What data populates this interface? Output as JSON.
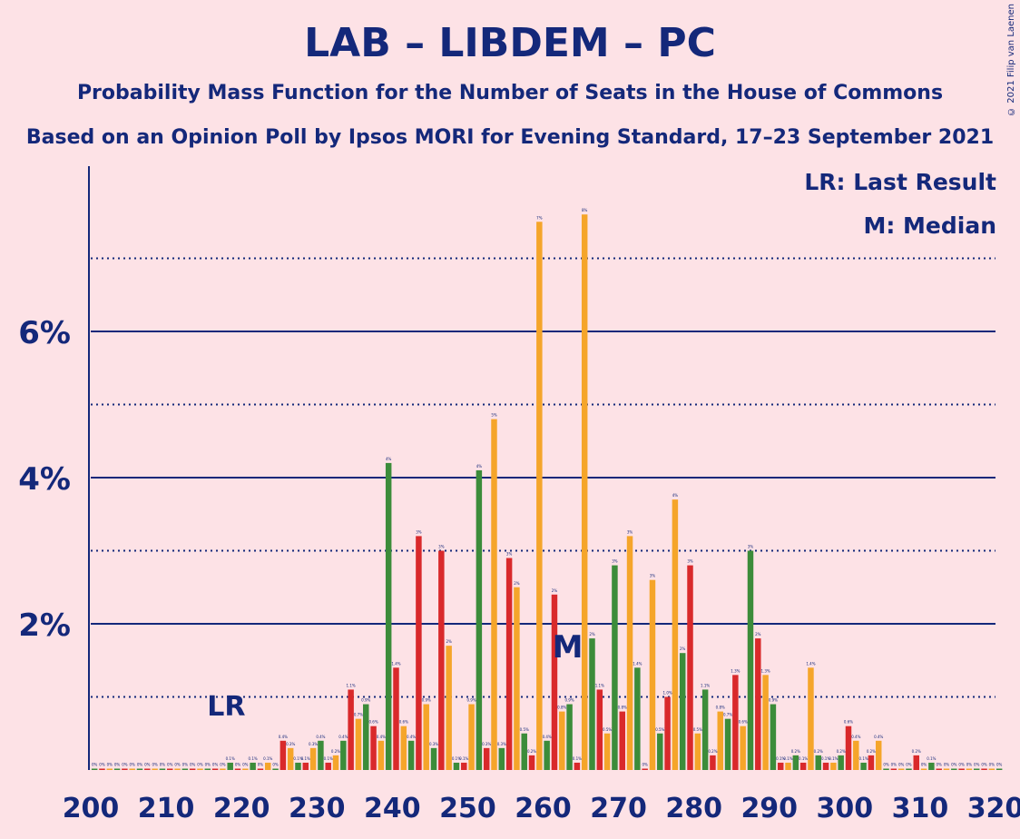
{
  "title": "LAB – LIBDEM – PC",
  "subtitle": "Probability Mass Function for the Number of Seats in the House of Commons",
  "subtitle2": "Based on an Opinion Poll by Ipsos MORI for Evening Standard, 17–23 September 2021",
  "copyright": "© 2021 Filip van Laenen",
  "legend": {
    "lr": "LR: Last Result",
    "m": "M: Median"
  },
  "markers": {
    "lr_label": "LR",
    "lr_seat": 217,
    "median_label": "M",
    "median_seat": 263
  },
  "colors": {
    "background": "#fde2e6",
    "text": "#14287a",
    "green": "#3c8c3a",
    "red": "#d9292b",
    "orange": "#f5a52a"
  },
  "chart_data": {
    "type": "bar",
    "x_ticks": [
      "200",
      "210",
      "220",
      "230",
      "240",
      "250",
      "260",
      "270",
      "280",
      "290",
      "300",
      "310",
      "320"
    ],
    "y_ticks": [
      "2%",
      "4%",
      "6%"
    ],
    "xlim": [
      200,
      320
    ],
    "ylim": [
      0,
      8.2
    ],
    "solid_grid": [
      2,
      4,
      6
    ],
    "dotted_grid": [
      1,
      3,
      5,
      7
    ],
    "color_cycle": [
      "green",
      "red",
      "orange"
    ],
    "seats": [
      200,
      201,
      202,
      203,
      204,
      205,
      206,
      207,
      208,
      209,
      210,
      211,
      212,
      213,
      214,
      215,
      216,
      217,
      218,
      219,
      220,
      221,
      222,
      223,
      224,
      225,
      226,
      227,
      228,
      229,
      230,
      231,
      232,
      233,
      234,
      235,
      236,
      237,
      238,
      239,
      240,
      241,
      242,
      243,
      244,
      245,
      246,
      247,
      248,
      249,
      250,
      251,
      252,
      253,
      254,
      255,
      256,
      257,
      258,
      259,
      260,
      261,
      262,
      263,
      264,
      265,
      266,
      267,
      268,
      269,
      270,
      271,
      272,
      273,
      274,
      275,
      276,
      277,
      278,
      279,
      280,
      281,
      282,
      283,
      284,
      285,
      286,
      287,
      288,
      289,
      290,
      291,
      292,
      293,
      294,
      295,
      296,
      297,
      298,
      299,
      300,
      301,
      302,
      303,
      304,
      305,
      306,
      307,
      308,
      309,
      310,
      311,
      312,
      313,
      314,
      315,
      316,
      317,
      318,
      319,
      320
    ],
    "values": [
      0,
      0,
      0,
      0,
      0,
      0,
      0,
      0,
      0,
      0,
      0,
      0,
      0,
      0,
      0,
      0,
      0,
      0,
      0.1,
      0,
      0,
      0.1,
      0,
      0.1,
      0,
      0.4,
      0.3,
      0.1,
      0.1,
      0.3,
      0.4,
      0.1,
      0.2,
      0.4,
      1.1,
      0.7,
      0.9,
      0.6,
      0.4,
      4.2,
      1.4,
      0.6,
      0.4,
      3.2,
      0.9,
      0.3,
      3.0,
      1.7,
      0.1,
      0.1,
      0.9,
      4.1,
      0.3,
      4.8,
      0.3,
      2.9,
      2.5,
      0.5,
      0.2,
      7.5,
      0.4,
      2.4,
      0.8,
      0.9,
      0.1,
      7.6,
      1.8,
      1.1,
      0.5,
      2.8,
      0.8,
      3.2,
      1.4,
      0,
      2.6,
      0.5,
      1.0,
      3.7,
      1.6,
      2.8,
      0.5,
      1.1,
      0.2,
      0.8,
      0.7,
      1.3,
      0.6,
      3.0,
      1.8,
      1.3,
      0.9,
      0.1,
      0.1,
      0.2,
      0.1,
      1.4,
      0.2,
      0.1,
      0.1,
      0.2,
      0.6,
      0.4,
      0.1,
      0.2,
      0.4,
      0,
      0,
      0,
      0,
      0.2,
      0,
      0.1,
      0,
      0,
      0,
      0,
      0,
      0,
      0,
      0,
      0
    ],
    "labels": [
      "0%",
      "0%",
      "0%",
      "0%",
      "0%",
      "0%",
      "0%",
      "0%",
      "0%",
      "0%",
      "0%",
      "0%",
      "0%",
      "0%",
      "0%",
      "0%",
      "0%",
      "0%",
      "0.1%",
      "0%",
      "0%",
      "0.1%",
      "0%",
      "0.1%",
      "0%",
      "0.4%",
      "0.3%",
      "0.1%",
      "0.1%",
      "0.3%",
      "0.4%",
      "0.1%",
      "0.2%",
      "0.4%",
      "1.1%",
      "0.7%",
      "0.9%",
      "0.6%",
      "0.4%",
      "4%",
      "1.4%",
      "0.6%",
      "0.4%",
      "3%",
      "0.9%",
      "0.3%",
      "3%",
      "2%",
      "0.1%",
      "0.1%",
      "0.9%",
      "4%",
      "0.3%",
      "5%",
      "0.3%",
      "3%",
      "2%",
      "0.5%",
      "0.2%",
      "7%",
      "0.4%",
      "2%",
      "0.8%",
      "0.9%",
      "0.1%",
      "8%",
      "2%",
      "1.1%",
      "0.5%",
      "3%",
      "0.8%",
      "3%",
      "1.4%",
      "0%",
      "3%",
      "0.5%",
      "1.0%",
      "4%",
      "2%",
      "3%",
      "0.5%",
      "1.1%",
      "0.2%",
      "0.8%",
      "0.7%",
      "1.3%",
      "0.6%",
      "3%",
      "2%",
      "1.3%",
      "0.9%",
      "0.1%",
      "0.1%",
      "0.2%",
      "0.1%",
      "1.4%",
      "0.2%",
      "0.1%",
      "0.1%",
      "0.2%",
      "0.6%",
      "0.4%",
      "0.1%",
      "0.2%",
      "0.4%",
      "0%",
      "0%",
      "0%",
      "0%",
      "0.2%",
      "0%",
      "0.1%",
      "0%",
      "0%",
      "0%",
      "0%",
      "0%",
      "0%",
      "0%",
      "0%",
      "0%"
    ]
  }
}
